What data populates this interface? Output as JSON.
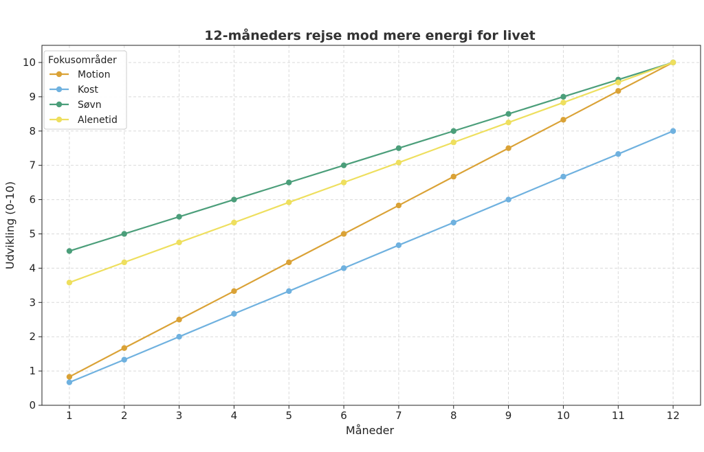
{
  "chart_data": {
    "type": "line",
    "title": "12-måneders rejse mod mere energi for livet",
    "xlabel": "Måneder",
    "ylabel": "Udvikling (0-10)",
    "x": [
      1,
      2,
      3,
      4,
      5,
      6,
      7,
      8,
      9,
      10,
      11,
      12
    ],
    "xticks": [
      "1",
      "2",
      "3",
      "4",
      "5",
      "6",
      "7",
      "8",
      "9",
      "10",
      "11",
      "12"
    ],
    "yticks": [
      "0",
      "1",
      "2",
      "3",
      "4",
      "5",
      "6",
      "7",
      "8",
      "9",
      "10"
    ],
    "xlim": [
      0.5,
      12.5
    ],
    "ylim": [
      0,
      10.5
    ],
    "grid": true,
    "legend_title": "Fokusområder",
    "legend_position": "top-left",
    "series": [
      {
        "name": "Motion",
        "color": "#DAA236",
        "values": [
          0.83,
          1.67,
          2.5,
          3.33,
          4.17,
          5.0,
          5.83,
          6.67,
          7.5,
          8.33,
          9.17,
          10.0
        ]
      },
      {
        "name": "Kost",
        "color": "#6FB1DF",
        "values": [
          0.67,
          1.33,
          2.0,
          2.67,
          3.33,
          4.0,
          4.67,
          5.33,
          6.0,
          6.67,
          7.33,
          8.0
        ]
      },
      {
        "name": "Søvn",
        "color": "#4B9E7A",
        "values": [
          4.5,
          5.0,
          5.5,
          6.0,
          6.5,
          7.0,
          7.5,
          8.0,
          8.5,
          9.0,
          9.5,
          10.0
        ]
      },
      {
        "name": "Alenetid",
        "color": "#EEDF5E",
        "values": [
          3.58,
          4.17,
          4.75,
          5.33,
          5.92,
          6.5,
          7.08,
          7.67,
          8.25,
          8.83,
          9.42,
          10.0
        ]
      }
    ]
  }
}
